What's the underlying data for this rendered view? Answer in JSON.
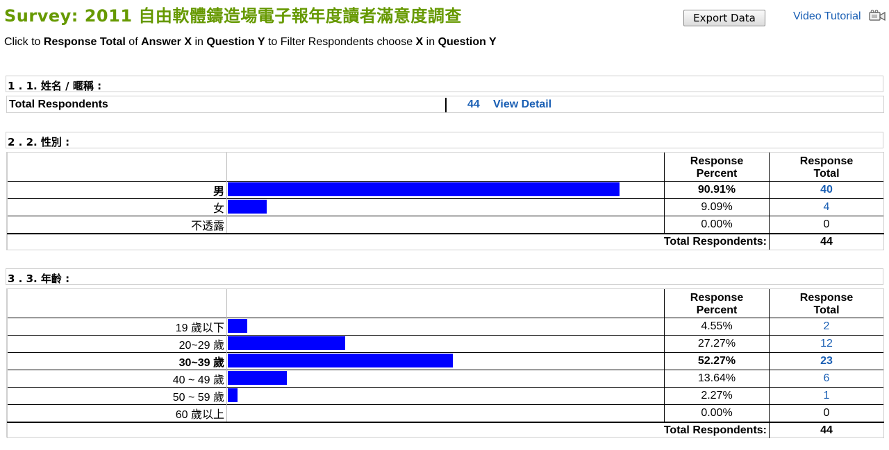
{
  "survey": {
    "title": "Survey: 2011 自由軟體鑄造場電子報年度讀者滿意度調查",
    "export_label": "Export Data",
    "video_label": "Video Tutorial",
    "video_icon": "video-camera-icon"
  },
  "instruction": {
    "p1": "Click to ",
    "b1": "Response Total",
    "p2": " of ",
    "b2": "Answer X",
    "p3": " in ",
    "b3": "Question Y",
    "p4": " to Filter Respondents choose ",
    "b4": "X",
    "p5": " in ",
    "b5": "Question Y"
  },
  "q1": {
    "title": "1 . 1. 姓名 / 暱稱 :",
    "total_label": "Total Respondents",
    "total_count": "44",
    "view_label": "View Detail"
  },
  "headers": {
    "percent_line1": "Response",
    "percent_line2": "Percent",
    "total_line1": "Response",
    "total_line2": "Total"
  },
  "q2": {
    "title": "2 . 2. 性別 :",
    "total_label": "Total Respondents:",
    "total_value": "44",
    "rows": [
      {
        "label": "男",
        "percent": "90.91%",
        "total": "40",
        "share": 0.9091,
        "highlight": true,
        "link": true
      },
      {
        "label": "女",
        "percent": "9.09%",
        "total": "4",
        "share": 0.0909,
        "highlight": false,
        "link": true
      },
      {
        "label": "不透露",
        "percent": "0.00%",
        "total": "0",
        "share": 0,
        "highlight": false,
        "link": false
      }
    ]
  },
  "q3": {
    "title": "3 . 3. 年齡 :",
    "total_label": "Total Respondents:",
    "total_value": "44",
    "rows": [
      {
        "label": "19 歲以下",
        "percent": "4.55%",
        "total": "2",
        "share": 0.0455,
        "highlight": false,
        "link": true
      },
      {
        "label": "20~29 歲",
        "percent": "27.27%",
        "total": "12",
        "share": 0.2727,
        "highlight": false,
        "link": true
      },
      {
        "label": "30~39 歲",
        "percent": "52.27%",
        "total": "23",
        "share": 0.5227,
        "highlight": true,
        "link": true
      },
      {
        "label": "40 ~ 49 歲",
        "percent": "13.64%",
        "total": "6",
        "share": 0.1364,
        "highlight": false,
        "link": true
      },
      {
        "label": "50 ~ 59 歲",
        "percent": "2.27%",
        "total": "1",
        "share": 0.0227,
        "highlight": false,
        "link": true
      },
      {
        "label": "60 歲以上",
        "percent": "0.00%",
        "total": "0",
        "share": 0,
        "highlight": false,
        "link": false
      }
    ]
  },
  "colors": {
    "title": "#669900",
    "link": "#1a5fb4",
    "bar": "#0000ff"
  }
}
